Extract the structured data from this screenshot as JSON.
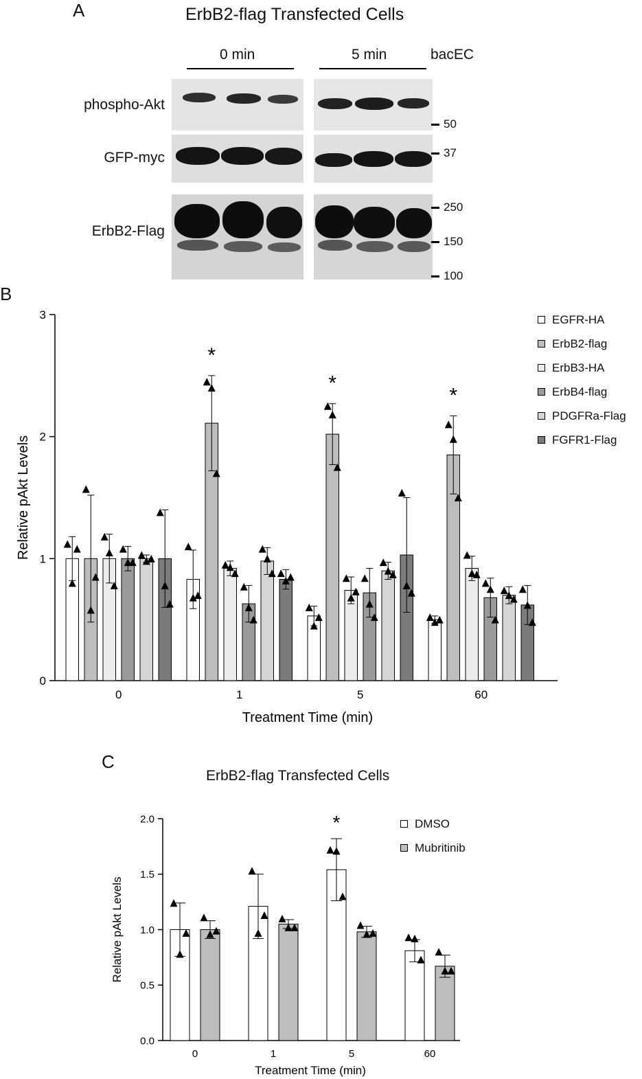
{
  "panel_a": {
    "letter": "A",
    "title": "ErbB2-flag Transfected Cells",
    "lanes": [
      {
        "label": "0 min"
      },
      {
        "label": "5 min"
      }
    ],
    "treatment_label": "bacEC",
    "rows": [
      {
        "label": "phospho-Akt"
      },
      {
        "label": "GFP-myc"
      },
      {
        "label": "ErbB2-Flag"
      }
    ],
    "markers": [
      "50",
      "37",
      "250",
      "150",
      "100"
    ]
  },
  "chart_data": [
    {
      "type": "bar",
      "panel": "B",
      "title": "",
      "xlabel": "Treatment Time (min)",
      "ylabel": "Relative pAkt Levels",
      "ylim": [
        0,
        3
      ],
      "yticks": [
        "0",
        "1",
        "2",
        "3"
      ],
      "categories": [
        "0",
        "1",
        "5",
        "60"
      ],
      "legend_position": "top-right",
      "series": [
        {
          "name": "EGFR-HA",
          "color": "#ffffff",
          "values": [
            1.0,
            0.83,
            0.53,
            0.5
          ],
          "errors": [
            0.18,
            0.24,
            0.08,
            0.03
          ],
          "points": [
            [
              1.12,
              0.8,
              1.08
            ],
            [
              1.1,
              0.68,
              0.7
            ],
            [
              0.6,
              0.45,
              0.52
            ],
            [
              0.52,
              0.48,
              0.5
            ]
          ]
        },
        {
          "name": "ErbB2-flag",
          "color": "#bdbdbd",
          "values": [
            1.0,
            2.11,
            2.02,
            1.85
          ],
          "errors": [
            0.52,
            0.39,
            0.25,
            0.32
          ],
          "points": [
            [
              1.57,
              0.58,
              0.85
            ],
            [
              2.45,
              2.4,
              1.7
            ],
            [
              2.25,
              2.18,
              1.75
            ],
            [
              2.1,
              1.98,
              1.5
            ]
          ]
        },
        {
          "name": "ErbB3-HA",
          "color": "#ececec",
          "values": [
            1.0,
            0.92,
            0.74,
            0.92
          ],
          "errors": [
            0.2,
            0.06,
            0.11,
            0.1
          ],
          "points": [
            [
              1.18,
              1.05,
              0.78
            ],
            [
              0.95,
              0.93,
              0.88
            ],
            [
              0.84,
              0.68,
              0.73
            ],
            [
              1.03,
              0.88,
              0.87
            ]
          ]
        },
        {
          "name": "ErbB4-flag",
          "color": "#9a9a9a",
          "values": [
            1.0,
            0.63,
            0.72,
            0.68
          ],
          "errors": [
            0.1,
            0.15,
            0.2,
            0.16
          ],
          "points": [
            [
              1.08,
              0.97,
              0.97
            ],
            [
              0.77,
              0.6,
              0.5
            ],
            [
              0.84,
              0.63,
              0.52
            ],
            [
              0.8,
              0.75,
              0.5
            ]
          ]
        },
        {
          "name": "PDGFRa-Flag",
          "color": "#d5d5d5",
          "values": [
            1.0,
            0.98,
            0.9,
            0.7
          ],
          "errors": [
            0.03,
            0.11,
            0.07,
            0.07
          ],
          "points": [
            [
              1.03,
              0.98,
              1.0
            ],
            [
              1.08,
              1.0,
              0.88
            ],
            [
              0.97,
              0.9,
              0.87
            ],
            [
              0.74,
              0.7,
              0.67
            ]
          ]
        },
        {
          "name": "FGFR1-Flag",
          "color": "#7b7b7b",
          "values": [
            1.0,
            0.83,
            1.03,
            0.62
          ],
          "errors": [
            0.4,
            0.08,
            0.47,
            0.16
          ],
          "points": [
            [
              1.38,
              0.78,
              0.63
            ],
            [
              0.88,
              0.82,
              0.85
            ],
            [
              1.54,
              0.78,
              0.72
            ],
            [
              0.75,
              0.62,
              0.48
            ]
          ]
        }
      ],
      "annotations": [
        {
          "text": "*",
          "category": "1"
        },
        {
          "text": "*",
          "category": "5"
        },
        {
          "text": "*",
          "category": "60"
        }
      ]
    },
    {
      "type": "bar",
      "panel": "C",
      "title": "ErbB2-flag Transfected Cells",
      "xlabel": "Treatment Time (min)",
      "ylabel": "Relative pAkt Levels",
      "ylim": [
        0,
        2
      ],
      "yticks": [
        "0.0",
        "0.5",
        "1.0",
        "1.5",
        "2.0"
      ],
      "categories": [
        "0",
        "1",
        "5",
        "60"
      ],
      "legend_position": "top-right",
      "series": [
        {
          "name": "DMSO",
          "color": "#ffffff",
          "values": [
            1.0,
            1.21,
            1.54,
            0.81
          ],
          "errors": [
            0.24,
            0.29,
            0.28,
            0.1
          ],
          "points": [
            [
              1.24,
              0.78,
              0.97
            ],
            [
              1.53,
              0.97,
              1.13
            ],
            [
              1.72,
              1.71,
              1.3
            ],
            [
              0.93,
              0.92,
              0.73
            ]
          ]
        },
        {
          "name": "Mubritinib",
          "color": "#bdbdbd",
          "values": [
            1.0,
            1.05,
            0.98,
            0.67
          ],
          "errors": [
            0.08,
            0.04,
            0.05,
            0.1
          ],
          "points": [
            [
              1.11,
              0.96,
              0.99
            ],
            [
              1.1,
              1.02,
              1.02
            ],
            [
              1.04,
              0.96,
              0.97
            ],
            [
              0.8,
              0.63,
              0.63
            ]
          ]
        }
      ],
      "annotations": [
        {
          "text": "*",
          "category": "5"
        }
      ]
    }
  ]
}
